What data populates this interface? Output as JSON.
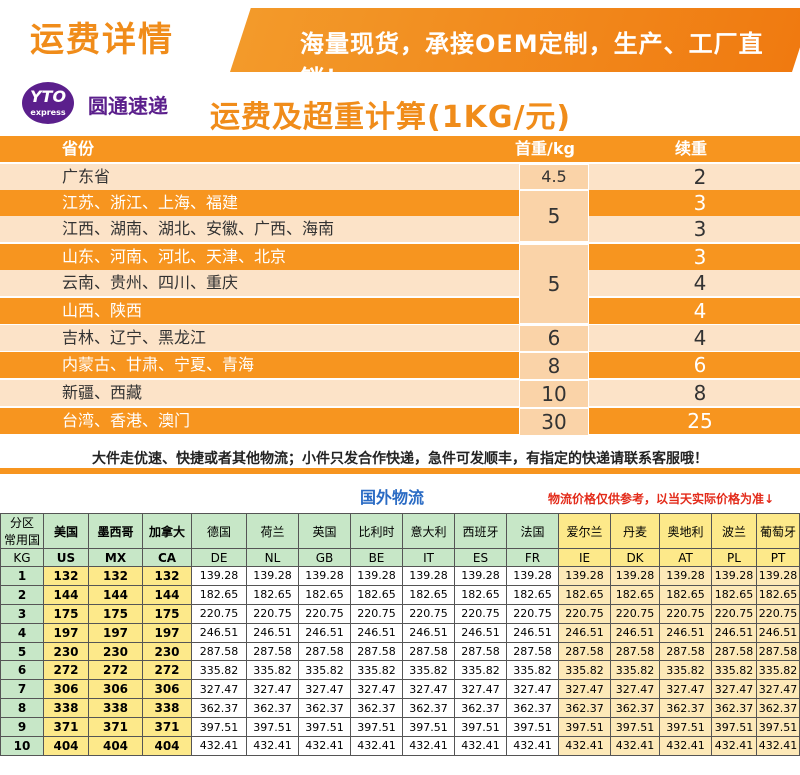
{
  "header": {
    "title": "运费详情",
    "slogan": "海量现货，承接OEM定制，生产、工厂直销！",
    "logo_mark": "YTO",
    "logo_sub": "express",
    "logo_text": "圆通速递",
    "calc_title": "运费及超重计算(1KG/元)"
  },
  "domestic": {
    "headers": {
      "province": "省份",
      "first": "首重/kg",
      "cont": "续重"
    },
    "rows": [
      {
        "province": "广东省",
        "cont": "2"
      },
      {
        "province": "江苏、浙江、上海、福建",
        "cont": "3"
      },
      {
        "province": "江西、湖南、湖北、安徽、广西、海南",
        "cont": "3"
      },
      {
        "province": "山东、河南、河北、天津、北京",
        "cont": "3"
      },
      {
        "province": "云南、贵州、四川、重庆",
        "cont": "4"
      },
      {
        "province": "山西、陕西",
        "cont": "4"
      },
      {
        "province": "吉林、辽宁、黑龙江",
        "cont": "4"
      },
      {
        "province": "内蒙古、甘肃、宁夏、青海",
        "cont": "6"
      },
      {
        "province": "新疆、西藏",
        "cont": "8"
      },
      {
        "province": "台湾、香港、澳门",
        "cont": "25"
      }
    ],
    "first_weights": [
      "4.5",
      "5",
      "5",
      "6",
      "8",
      "10",
      "30"
    ],
    "note": "大件走优速、快捷或者其他物流；小件只发合作快递，急件可发顺丰，有指定的快递请联系客服哦！"
  },
  "international": {
    "title": "国外物流",
    "note": "物流价格仅供参考，以当天实际价格为准↓",
    "corner_top": "分区",
    "corner_bottom": "常用国",
    "kg_label": "KG",
    "countries": [
      "美国",
      "墨西哥",
      "加拿大",
      "德国",
      "荷兰",
      "英国",
      "比利时",
      "意大利",
      "西班牙",
      "法国",
      "爱尔兰",
      "丹麦",
      "奥地利",
      "波兰",
      "葡萄牙"
    ],
    "codes": [
      "US",
      "MX",
      "CA",
      "DE",
      "NL",
      "GB",
      "BE",
      "IT",
      "ES",
      "FR",
      "IE",
      "DK",
      "AT",
      "PL",
      "PT"
    ],
    "rows": [
      {
        "kg": "1",
        "us": "132",
        "eu": "139.28"
      },
      {
        "kg": "2",
        "us": "144",
        "eu": "182.65"
      },
      {
        "kg": "3",
        "us": "175",
        "eu": "220.75"
      },
      {
        "kg": "4",
        "us": "197",
        "eu": "246.51"
      },
      {
        "kg": "5",
        "us": "230",
        "eu": "287.58"
      },
      {
        "kg": "6",
        "us": "272",
        "eu": "335.82"
      },
      {
        "kg": "7",
        "us": "306",
        "eu": "327.47"
      },
      {
        "kg": "8",
        "us": "338",
        "eu": "362.37"
      },
      {
        "kg": "9",
        "us": "371",
        "eu": "397.51"
      },
      {
        "kg": "10",
        "us": "404",
        "eu": "432.41"
      }
    ]
  }
}
